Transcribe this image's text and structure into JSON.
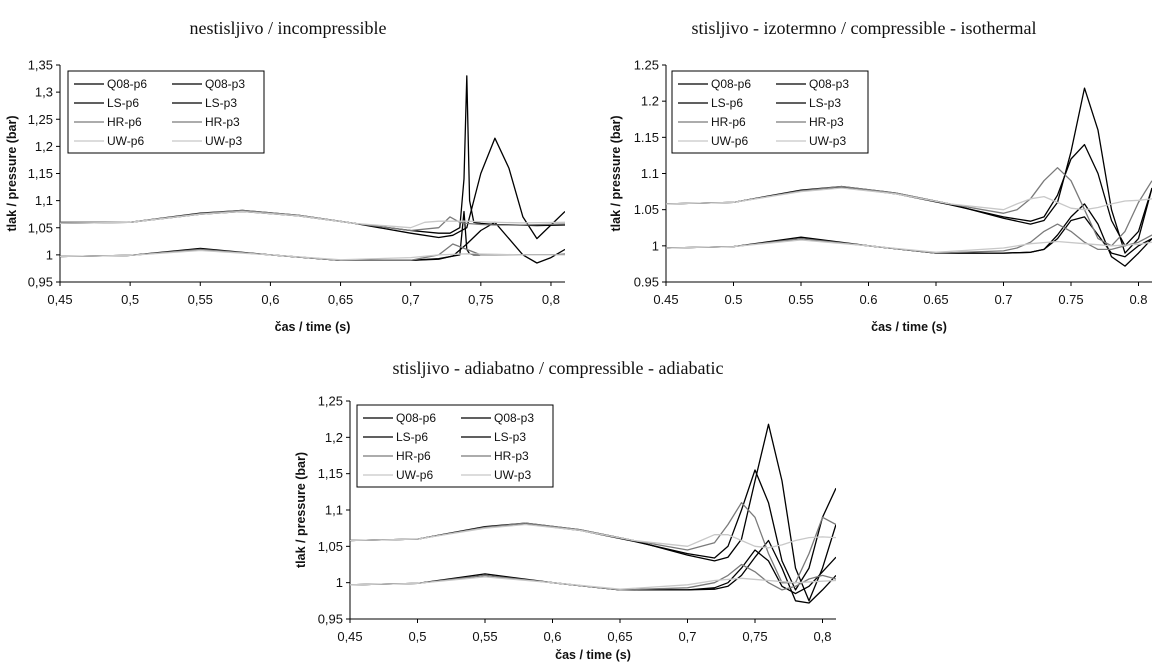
{
  "chart_data": [
    {
      "type": "line",
      "title": "nestisljivo / incompressible",
      "xlabel": "čas / time (s)",
      "ylabel": "tlak / pressure (bar)",
      "xlim": [
        0.45,
        0.81
      ],
      "ylim": [
        0.95,
        1.35
      ],
      "xticks": [
        "0,45",
        "0,5",
        "0,55",
        "0,6",
        "0,65",
        "0,7",
        "0,75",
        "0,8"
      ],
      "yticks": [
        "0,95",
        "1",
        "1,05",
        "1,1",
        "1,15",
        "1,2",
        "1,25",
        "1,3",
        "1,35"
      ],
      "legend_position": "top-left",
      "series": [
        {
          "name": "Q08-p6",
          "color": "#000000",
          "x": [
            0.45,
            0.5,
            0.55,
            0.58,
            0.62,
            0.66,
            0.7,
            0.72,
            0.728,
            0.735,
            0.738,
            0.74,
            0.742,
            0.745,
            0.75,
            0.76,
            0.775,
            0.79,
            0.81
          ],
          "y": [
            1.06,
            1.06,
            1.075,
            1.08,
            1.072,
            1.058,
            1.045,
            1.04,
            1.04,
            1.05,
            1.14,
            1.33,
            1.1,
            1.06,
            1.058,
            1.056,
            1.055,
            1.054,
            1.055
          ]
        },
        {
          "name": "Q08-p3",
          "color": "#000000",
          "x": [
            0.45,
            0.5,
            0.55,
            0.6,
            0.65,
            0.7,
            0.72,
            0.735,
            0.738,
            0.74,
            0.742,
            0.745,
            0.75,
            0.76,
            0.78,
            0.8,
            0.81
          ],
          "y": [
            0.997,
            0.999,
            1.01,
            1.0,
            0.99,
            0.99,
            0.993,
            1.0,
            1.08,
            1.01,
            1.002,
            1.0,
            1.0,
            1.0,
            1.0,
            1.0,
            1.001
          ]
        },
        {
          "name": "LS-p6",
          "color": "#000000",
          "x": [
            0.45,
            0.5,
            0.55,
            0.58,
            0.62,
            0.66,
            0.7,
            0.72,
            0.73,
            0.74,
            0.75,
            0.76,
            0.77,
            0.78,
            0.79,
            0.81
          ],
          "y": [
            1.058,
            1.06,
            1.077,
            1.082,
            1.073,
            1.058,
            1.04,
            1.032,
            1.036,
            1.05,
            1.15,
            1.215,
            1.16,
            1.07,
            1.03,
            1.08
          ]
        },
        {
          "name": "LS-p3",
          "color": "#000000",
          "x": [
            0.45,
            0.5,
            0.55,
            0.6,
            0.65,
            0.7,
            0.72,
            0.73,
            0.74,
            0.75,
            0.76,
            0.77,
            0.78,
            0.79,
            0.8,
            0.81
          ],
          "y": [
            0.997,
            0.999,
            1.012,
            1.0,
            0.99,
            0.99,
            0.992,
            0.998,
            1.02,
            1.045,
            1.06,
            1.03,
            1.0,
            0.985,
            0.995,
            1.01
          ]
        },
        {
          "name": "HR-p6",
          "color": "#7a7a7a",
          "x": [
            0.45,
            0.5,
            0.55,
            0.58,
            0.62,
            0.66,
            0.7,
            0.72,
            0.728,
            0.735,
            0.74,
            0.75,
            0.76,
            0.78,
            0.81
          ],
          "y": [
            1.06,
            1.06,
            1.076,
            1.082,
            1.073,
            1.058,
            1.045,
            1.05,
            1.07,
            1.06,
            1.058,
            1.056,
            1.055,
            1.055,
            1.057
          ]
        },
        {
          "name": "HR-p3",
          "color": "#7a7a7a",
          "x": [
            0.45,
            0.5,
            0.55,
            0.6,
            0.65,
            0.7,
            0.72,
            0.73,
            0.74,
            0.75,
            0.78,
            0.81
          ],
          "y": [
            0.997,
            0.999,
            1.01,
            1.0,
            0.99,
            0.99,
            1.0,
            1.02,
            1.01,
            1.0,
            1.0,
            1.0
          ]
        },
        {
          "name": "UW-p6",
          "color": "#c8c8c8",
          "x": [
            0.45,
            0.5,
            0.55,
            0.58,
            0.62,
            0.66,
            0.7,
            0.71,
            0.72,
            0.74,
            0.76,
            0.78,
            0.81
          ],
          "y": [
            1.058,
            1.06,
            1.075,
            1.08,
            1.072,
            1.058,
            1.05,
            1.06,
            1.062,
            1.062,
            1.06,
            1.059,
            1.06
          ]
        },
        {
          "name": "UW-p3",
          "color": "#c8c8c8",
          "x": [
            0.45,
            0.5,
            0.55,
            0.6,
            0.65,
            0.7,
            0.72,
            0.74,
            0.76,
            0.78,
            0.81
          ],
          "y": [
            0.997,
            0.999,
            1.008,
            1.0,
            0.991,
            0.995,
            1.0,
            1.002,
            1.001,
            1.0,
            1.0
          ]
        }
      ]
    },
    {
      "type": "line",
      "title": "stisljivo - izotermno / compressible - isothermal",
      "xlabel": "čas / time (s)",
      "ylabel": "tlak / pressure (bar)",
      "xlim": [
        0.45,
        0.81
      ],
      "ylim": [
        0.95,
        1.25
      ],
      "xticks": [
        "0.45",
        "0.5",
        "0.55",
        "0.6",
        "0.65",
        "0.7",
        "0.75",
        "0.8"
      ],
      "yticks": [
        "0.95",
        "1",
        "1.05",
        "1.1",
        "1.15",
        "1.2",
        "1.25"
      ],
      "legend_position": "top-left",
      "series": [
        {
          "name": "Q08-p6",
          "color": "#000000",
          "x": [
            0.45,
            0.5,
            0.55,
            0.58,
            0.62,
            0.66,
            0.7,
            0.72,
            0.73,
            0.74,
            0.75,
            0.76,
            0.77,
            0.78,
            0.79,
            0.8,
            0.81
          ],
          "y": [
            1.058,
            1.06,
            1.076,
            1.081,
            1.072,
            1.057,
            1.04,
            1.034,
            1.04,
            1.07,
            1.12,
            1.14,
            1.1,
            1.035,
            1.0,
            1.02,
            1.08
          ]
        },
        {
          "name": "Q08-p3",
          "color": "#000000",
          "x": [
            0.45,
            0.5,
            0.55,
            0.6,
            0.65,
            0.7,
            0.72,
            0.73,
            0.74,
            0.75,
            0.76,
            0.77,
            0.78,
            0.79,
            0.8,
            0.81
          ],
          "y": [
            0.997,
            0.999,
            1.01,
            1.0,
            0.99,
            0.99,
            0.991,
            0.995,
            1.01,
            1.035,
            1.04,
            1.015,
            0.99,
            0.985,
            1.0,
            1.01
          ]
        },
        {
          "name": "LS-p6",
          "color": "#000000",
          "x": [
            0.45,
            0.5,
            0.55,
            0.58,
            0.62,
            0.66,
            0.7,
            0.72,
            0.73,
            0.74,
            0.75,
            0.76,
            0.77,
            0.78,
            0.79,
            0.8,
            0.81
          ],
          "y": [
            1.058,
            1.06,
            1.077,
            1.082,
            1.073,
            1.058,
            1.038,
            1.03,
            1.035,
            1.06,
            1.13,
            1.218,
            1.16,
            1.05,
            0.99,
            1.01,
            1.08
          ]
        },
        {
          "name": "LS-p3",
          "color": "#000000",
          "x": [
            0.45,
            0.5,
            0.55,
            0.6,
            0.65,
            0.7,
            0.72,
            0.73,
            0.74,
            0.75,
            0.76,
            0.77,
            0.78,
            0.79,
            0.8,
            0.81
          ],
          "y": [
            0.997,
            0.999,
            1.012,
            1.0,
            0.99,
            0.99,
            0.991,
            0.995,
            1.015,
            1.04,
            1.058,
            1.03,
            0.985,
            0.972,
            0.99,
            1.01
          ]
        },
        {
          "name": "HR-p6",
          "color": "#7a7a7a",
          "x": [
            0.45,
            0.5,
            0.55,
            0.58,
            0.62,
            0.66,
            0.7,
            0.71,
            0.72,
            0.73,
            0.74,
            0.75,
            0.76,
            0.77,
            0.78,
            0.79,
            0.8,
            0.81
          ],
          "y": [
            1.058,
            1.06,
            1.076,
            1.082,
            1.073,
            1.058,
            1.045,
            1.05,
            1.065,
            1.09,
            1.108,
            1.09,
            1.05,
            1.01,
            1.0,
            1.02,
            1.06,
            1.09
          ]
        },
        {
          "name": "HR-p3",
          "color": "#7a7a7a",
          "x": [
            0.45,
            0.5,
            0.55,
            0.6,
            0.65,
            0.7,
            0.71,
            0.72,
            0.73,
            0.74,
            0.75,
            0.76,
            0.77,
            0.78,
            0.79,
            0.8,
            0.81
          ],
          "y": [
            0.997,
            0.999,
            1.01,
            1.0,
            0.99,
            0.993,
            0.997,
            1.005,
            1.02,
            1.03,
            1.02,
            1.005,
            0.995,
            0.995,
            1.0,
            1.005,
            1.015
          ]
        },
        {
          "name": "UW-p6",
          "color": "#c8c8c8",
          "x": [
            0.45,
            0.5,
            0.55,
            0.58,
            0.62,
            0.66,
            0.7,
            0.71,
            0.72,
            0.73,
            0.74,
            0.75,
            0.76,
            0.77,
            0.78,
            0.79,
            0.8,
            0.81
          ],
          "y": [
            1.058,
            1.06,
            1.075,
            1.08,
            1.072,
            1.058,
            1.05,
            1.058,
            1.065,
            1.068,
            1.06,
            1.052,
            1.05,
            1.053,
            1.058,
            1.062,
            1.063,
            1.065
          ]
        },
        {
          "name": "UW-p3",
          "color": "#c8c8c8",
          "x": [
            0.45,
            0.5,
            0.55,
            0.6,
            0.65,
            0.7,
            0.72,
            0.74,
            0.76,
            0.78,
            0.8,
            0.81
          ],
          "y": [
            0.997,
            0.999,
            1.008,
            1.0,
            0.991,
            0.997,
            1.003,
            1.006,
            1.003,
            1.0,
            1.002,
            1.005
          ]
        }
      ]
    },
    {
      "type": "line",
      "title": "stisljivo - adiabatno / compressible - adiabatic",
      "xlabel": "čas / time (s)",
      "ylabel": "tlak / pressure (bar)",
      "xlim": [
        0.45,
        0.81
      ],
      "ylim": [
        0.95,
        1.25
      ],
      "xticks": [
        "0,45",
        "0,5",
        "0,55",
        "0,6",
        "0,65",
        "0,7",
        "0,75",
        "0,8"
      ],
      "yticks": [
        "0,95",
        "1",
        "1,05",
        "1,1",
        "1,15",
        "1,2",
        "1,25"
      ],
      "legend_position": "top-left",
      "series": [
        {
          "name": "Q08-p6",
          "color": "#000000",
          "x": [
            0.45,
            0.5,
            0.55,
            0.58,
            0.62,
            0.66,
            0.7,
            0.72,
            0.73,
            0.74,
            0.75,
            0.76,
            0.77,
            0.78,
            0.79,
            0.8,
            0.81
          ],
          "y": [
            1.058,
            1.06,
            1.076,
            1.081,
            1.072,
            1.057,
            1.04,
            1.034,
            1.05,
            1.1,
            1.155,
            1.11,
            1.03,
            0.99,
            1.02,
            1.09,
            1.13
          ]
        },
        {
          "name": "Q08-p3",
          "color": "#000000",
          "x": [
            0.45,
            0.5,
            0.55,
            0.6,
            0.65,
            0.7,
            0.72,
            0.73,
            0.74,
            0.75,
            0.76,
            0.77,
            0.78,
            0.79,
            0.8,
            0.81
          ],
          "y": [
            0.997,
            0.999,
            1.01,
            1.0,
            0.99,
            0.99,
            0.993,
            1.0,
            1.02,
            1.045,
            1.03,
            0.995,
            0.985,
            0.995,
            1.015,
            1.035
          ]
        },
        {
          "name": "LS-p6",
          "color": "#000000",
          "x": [
            0.45,
            0.5,
            0.55,
            0.58,
            0.62,
            0.66,
            0.7,
            0.72,
            0.73,
            0.74,
            0.75,
            0.76,
            0.77,
            0.78,
            0.79,
            0.8,
            0.81
          ],
          "y": [
            1.058,
            1.06,
            1.077,
            1.082,
            1.073,
            1.058,
            1.038,
            1.03,
            1.035,
            1.06,
            1.14,
            1.218,
            1.14,
            1.02,
            0.975,
            1.02,
            1.08
          ]
        },
        {
          "name": "LS-p3",
          "color": "#000000",
          "x": [
            0.45,
            0.5,
            0.55,
            0.6,
            0.65,
            0.7,
            0.72,
            0.73,
            0.74,
            0.75,
            0.76,
            0.77,
            0.78,
            0.79,
            0.8,
            0.81
          ],
          "y": [
            0.997,
            0.999,
            1.012,
            1.0,
            0.99,
            0.99,
            0.991,
            0.995,
            1.01,
            1.035,
            1.058,
            1.02,
            0.975,
            0.972,
            0.99,
            1.01
          ]
        },
        {
          "name": "HR-p6",
          "color": "#7a7a7a",
          "x": [
            0.45,
            0.5,
            0.55,
            0.58,
            0.62,
            0.66,
            0.7,
            0.72,
            0.73,
            0.74,
            0.75,
            0.76,
            0.77,
            0.78,
            0.79,
            0.8,
            0.81
          ],
          "y": [
            1.058,
            1.06,
            1.076,
            1.082,
            1.073,
            1.058,
            1.045,
            1.055,
            1.08,
            1.11,
            1.09,
            1.04,
            1.0,
            1.0,
            1.04,
            1.09,
            1.08
          ]
        },
        {
          "name": "HR-p3",
          "color": "#7a7a7a",
          "x": [
            0.45,
            0.5,
            0.55,
            0.6,
            0.65,
            0.7,
            0.72,
            0.73,
            0.74,
            0.75,
            0.76,
            0.77,
            0.78,
            0.79,
            0.8,
            0.81
          ],
          "y": [
            0.997,
            0.999,
            1.01,
            1.0,
            0.99,
            0.993,
            1.0,
            1.01,
            1.025,
            1.015,
            1.0,
            0.99,
            0.995,
            1.005,
            1.01,
            1.005
          ]
        },
        {
          "name": "UW-p6",
          "color": "#c8c8c8",
          "x": [
            0.45,
            0.5,
            0.55,
            0.58,
            0.62,
            0.66,
            0.7,
            0.71,
            0.72,
            0.73,
            0.74,
            0.75,
            0.76,
            0.77,
            0.78,
            0.79,
            0.8,
            0.81
          ],
          "y": [
            1.058,
            1.06,
            1.075,
            1.08,
            1.072,
            1.058,
            1.05,
            1.058,
            1.066,
            1.066,
            1.058,
            1.05,
            1.048,
            1.052,
            1.058,
            1.062,
            1.063,
            1.062
          ]
        },
        {
          "name": "UW-p3",
          "color": "#c8c8c8",
          "x": [
            0.45,
            0.5,
            0.55,
            0.6,
            0.65,
            0.7,
            0.72,
            0.74,
            0.76,
            0.78,
            0.8,
            0.81
          ],
          "y": [
            0.997,
            0.999,
            1.008,
            1.0,
            0.991,
            0.997,
            1.003,
            1.006,
            1.003,
            1.0,
            1.002,
            1.003
          ]
        }
      ]
    }
  ]
}
